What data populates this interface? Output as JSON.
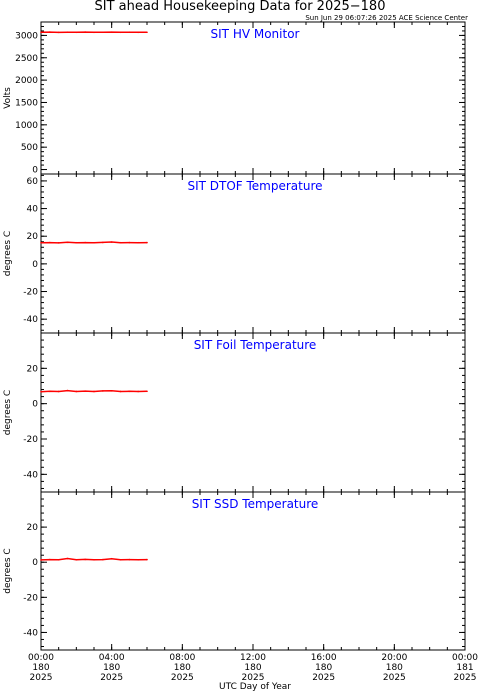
{
  "title": "SIT ahead Housekeeping Data for 2025−180",
  "timestamp": "Sun Jun 29 06:07:26 2025 ACE Science Center",
  "colors": {
    "trace": "#ff0000",
    "panel_title": "#0000ff",
    "frame": "#000000"
  },
  "chart_data": [
    {
      "type": "line",
      "title": "SIT HV Monitor",
      "ylabel": "Volts",
      "ylim": [
        -100,
        3300
      ],
      "yticks": [
        0,
        500,
        1000,
        1500,
        2000,
        2500,
        3000
      ],
      "x_hours": [
        0,
        0.5,
        1,
        1.5,
        2,
        2.5,
        3,
        3.5,
        4,
        4.5,
        5,
        5.5,
        6
      ],
      "values": [
        3070,
        3075,
        3068,
        3072,
        3070,
        3074,
        3069,
        3071,
        3073,
        3070,
        3072,
        3069,
        3071
      ]
    },
    {
      "type": "line",
      "title": "SIT DTOF Temperature",
      "ylabel": "degrees C",
      "ylim": [
        -50,
        65
      ],
      "yticks": [
        -40,
        -20,
        0,
        20,
        40,
        60
      ],
      "x_hours": [
        0,
        0.5,
        1,
        1.5,
        2,
        2.5,
        3,
        3.5,
        4,
        4.5,
        5,
        5.5,
        6
      ],
      "values": [
        15.3,
        15.4,
        15.2,
        15.6,
        15.3,
        15.4,
        15.3,
        15.5,
        15.8,
        15.3,
        15.4,
        15.3,
        15.4
      ]
    },
    {
      "type": "line",
      "title": "SIT Foil Temperature",
      "ylabel": "degrees C",
      "ylim": [
        -50,
        40
      ],
      "yticks": [
        -40,
        -20,
        0,
        20
      ],
      "x_hours": [
        0,
        0.5,
        1,
        1.5,
        2,
        2.5,
        3,
        3.5,
        4,
        4.5,
        5,
        5.5,
        6
      ],
      "values": [
        6.8,
        7.0,
        6.9,
        7.4,
        6.9,
        7.1,
        6.9,
        7.2,
        7.3,
        6.9,
        7.0,
        6.9,
        7.0
      ]
    },
    {
      "type": "line",
      "title": "SIT SSD Temperature",
      "ylabel": "degrees C",
      "ylim": [
        -50,
        40
      ],
      "yticks": [
        -40,
        -20,
        0,
        20
      ],
      "x_hours": [
        0,
        0.5,
        1,
        1.5,
        2,
        2.5,
        3,
        3.5,
        4,
        4.5,
        5,
        5.5,
        6
      ],
      "values": [
        1.3,
        1.5,
        1.4,
        2.1,
        1.4,
        1.6,
        1.4,
        1.5,
        2.0,
        1.4,
        1.5,
        1.4,
        1.5
      ]
    }
  ],
  "x_axis": {
    "label": "UTC Day of Year",
    "range_hours": [
      0,
      24
    ],
    "ticks": [
      {
        "hour": 0,
        "time": "00:00",
        "doy": "180",
        "year": "2025"
      },
      {
        "hour": 4,
        "time": "04:00",
        "doy": "180",
        "year": "2025"
      },
      {
        "hour": 8,
        "time": "08:00",
        "doy": "180",
        "year": "2025"
      },
      {
        "hour": 12,
        "time": "12:00",
        "doy": "180",
        "year": "2025"
      },
      {
        "hour": 16,
        "time": "16:00",
        "doy": "180",
        "year": "2025"
      },
      {
        "hour": 20,
        "time": "20:00",
        "doy": "180",
        "year": "2025"
      },
      {
        "hour": 24,
        "time": "00:00",
        "doy": "181",
        "year": "2025"
      }
    ]
  }
}
